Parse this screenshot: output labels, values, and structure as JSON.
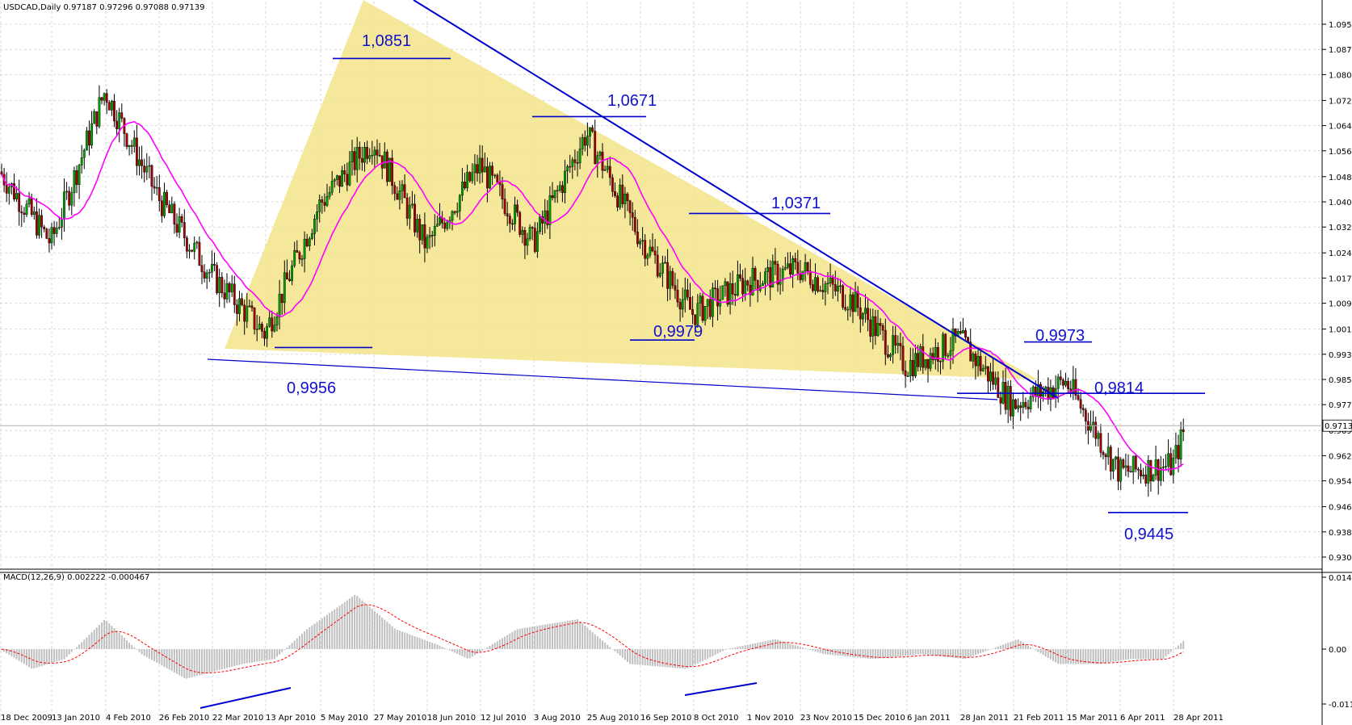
{
  "header": {
    "main_title": "USDCAD,Daily  0.97187 0.97296 0.97088 0.97139",
    "macd_title": "MACD(12,26,9) 0.002222 -0.000467"
  },
  "chart_data": [
    {
      "type": "candlestick",
      "symbol": "USDCAD",
      "timeframe": "Daily",
      "ohlc_last": {
        "open": 0.97187,
        "high": 0.97296,
        "low": 0.97088,
        "close": 0.97139
      },
      "current_price_label": "0.97139",
      "ylim": [
        0.9307,
        1.1035
      ],
      "y_ticks": [
        "1.09570",
        "1.08790",
        "1.08010",
        "1.07210",
        "1.06430",
        "1.05650",
        "1.04850",
        "1.04070",
        "1.03290",
        "1.02490",
        "1.01710",
        "1.00930",
        "1.00130",
        "0.99350",
        "0.98570",
        "0.97790",
        "0.96990",
        "0.96210",
        "0.95430",
        "0.94630",
        "0.93850",
        "0.93070"
      ],
      "x_ticks": [
        "18 Dec 2009",
        "13 Jan 2010",
        "4 Feb 2010",
        "26 Feb 2010",
        "22 Mar 2010",
        "13 Apr 2010",
        "5 May 2010",
        "27 May 2010",
        "18 Jun 2010",
        "12 Jul 2010",
        "3 Aug 2010",
        "25 Aug 2010",
        "16 Sep 2010",
        "8 Oct 2010",
        "1 Nov 2010",
        "23 Nov 2010",
        "15 Dec 2010",
        "6 Jan 2011",
        "28 Jan 2011",
        "21 Feb 2011",
        "15 Mar 2011",
        "6 Apr 2011",
        "28 Apr 2011"
      ],
      "close_path": [
        [
          "18 Dec 2009",
          1.05
        ],
        [
          "13 Jan 2010",
          1.028
        ],
        [
          "4 Feb 2010",
          1.075
        ],
        [
          "26 Feb 2010",
          1.042
        ],
        [
          "22 Mar 2010",
          1.018
        ],
        [
          "13 Apr 2010",
          1.0
        ],
        [
          "5 May 2010",
          1.04
        ],
        [
          "27 May 2010",
          1.06
        ],
        [
          "18 Jun 2010",
          1.027
        ],
        [
          "12 Jul 2010",
          1.052
        ],
        [
          "3 Aug 2010",
          1.028
        ],
        [
          "25 Aug 2010",
          1.062
        ],
        [
          "16 Sep 2010",
          1.03
        ],
        [
          "8 Oct 2010",
          1.006
        ],
        [
          "1 Nov 2010",
          1.016
        ],
        [
          "23 Nov 2010",
          1.02
        ],
        [
          "15 Dec 2010",
          1.01
        ],
        [
          "6 Jan 2011",
          0.99
        ],
        [
          "28 Jan 2011",
          0.998
        ],
        [
          "21 Feb 2011",
          0.978
        ],
        [
          "15 Mar 2011",
          0.985
        ],
        [
          "6 Apr 2011",
          0.957
        ],
        [
          "28 Apr 2011",
          0.959
        ],
        [
          "last",
          0.97139
        ]
      ],
      "series": [
        {
          "name": "",
          "color": "#ff00ff",
          "style": "moving-average"
        }
      ],
      "annotations": [
        {
          "label": "1,0851",
          "value": 1.0851
        },
        {
          "label": "1,0671",
          "value": 1.0671
        },
        {
          "label": "1,0371",
          "value": 1.0371
        },
        {
          "label": "0,9979",
          "value": 0.9979
        },
        {
          "label": "0,9956",
          "value": 0.9956
        },
        {
          "label": "0,9973",
          "value": 0.9973
        },
        {
          "label": "0,9814",
          "value": 0.9814
        },
        {
          "label": "0,9445",
          "value": 0.9445
        }
      ],
      "colors": {
        "bull": "#00a000",
        "bear": "#a00000",
        "line": "#0000cc",
        "triangle": "#f3e48a",
        "ma": "#ff00ff",
        "grid": "#d8d8d8"
      },
      "grid": true
    },
    {
      "type": "bar",
      "name": "MACD(12,26,9)",
      "value": 0.002222,
      "signal": -0.000467,
      "ylim": [
        -0.01106,
        0.014462
      ],
      "y_ticks": [
        "0.014462",
        "0.00",
        "-0.01106"
      ],
      "colors": {
        "histogram": "#bfbfbf",
        "signal": "#ff0000",
        "divergence": "#0000cc"
      }
    }
  ]
}
